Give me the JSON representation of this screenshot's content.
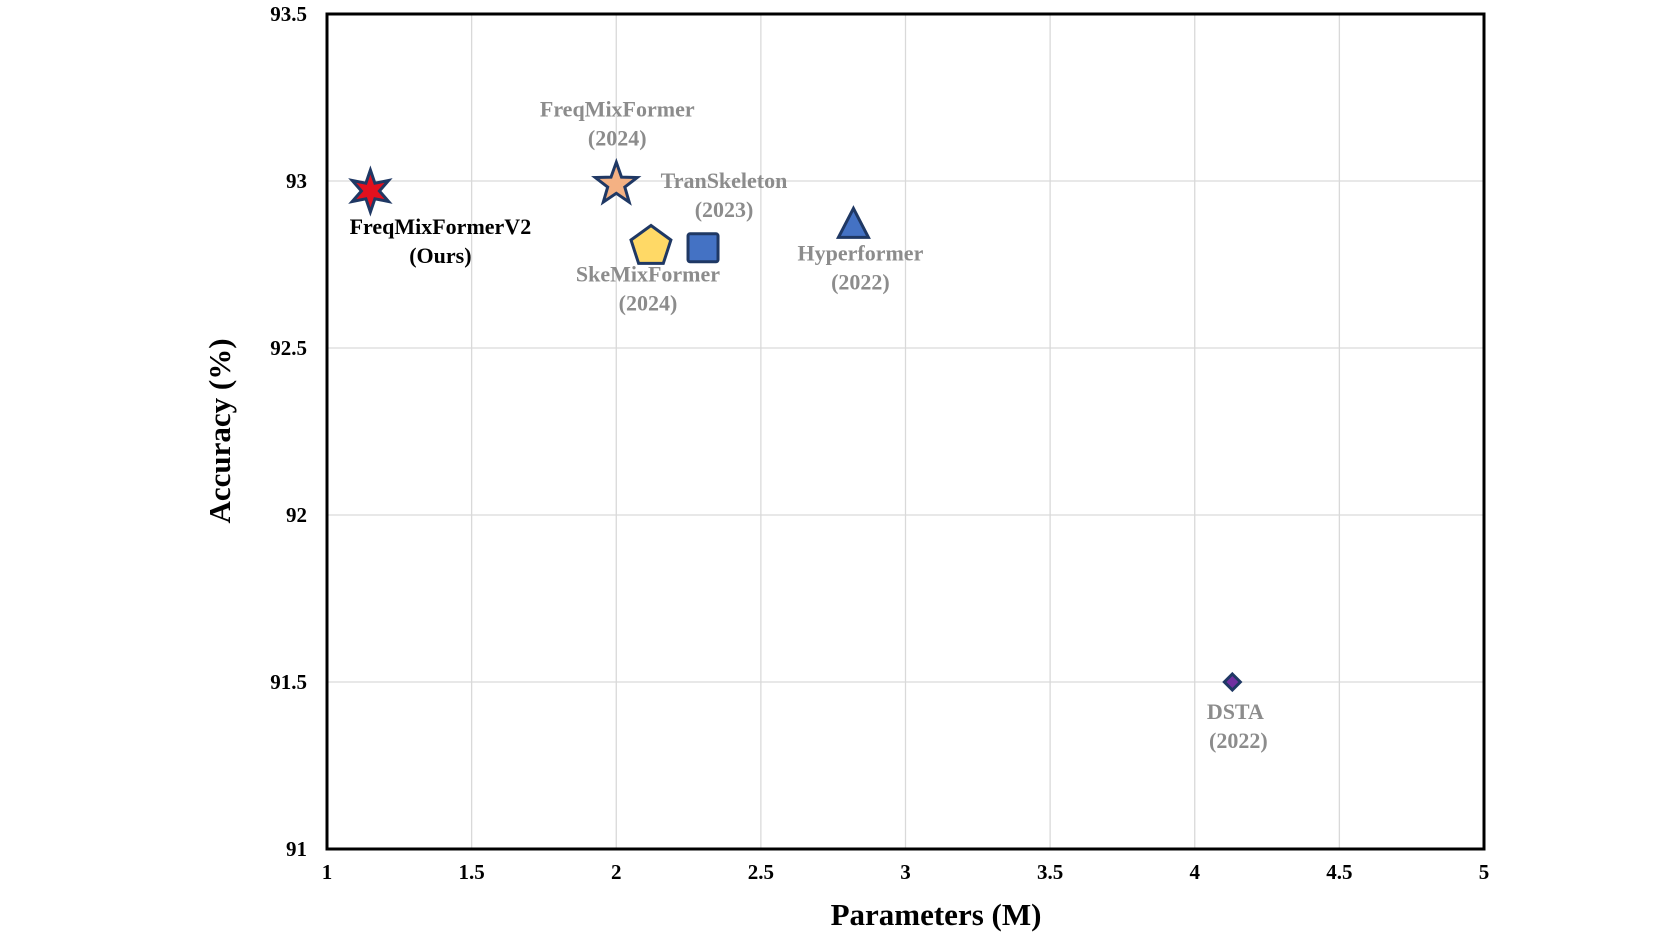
{
  "chart_data": {
    "type": "scatter",
    "title": "",
    "xlabel": "Parameters (M)",
    "ylabel": "Accuracy (%)",
    "xlim": [
      1,
      5
    ],
    "ylim": [
      91,
      93.5
    ],
    "xticks": [
      1,
      1.5,
      2,
      2.5,
      3,
      3.5,
      4,
      4.5,
      5
    ],
    "xtick_labels": [
      "1",
      "1.5",
      "2",
      "2.5",
      "3",
      "3.5",
      "4",
      "4.5",
      "5"
    ],
    "yticks": [
      91,
      91.5,
      92,
      92.5,
      93,
      93.5
    ],
    "ytick_labels": [
      "91",
      "91.5",
      "92",
      "92.5",
      "93",
      "93.5"
    ],
    "grid": true,
    "legend": "none",
    "points": [
      {
        "name": "FreqMixFormerV2",
        "year": "(Ours)",
        "x": 1.15,
        "y": 92.97,
        "marker": "star6",
        "fill": "#e3101e",
        "label_color": "#000000",
        "label_position": "below"
      },
      {
        "name": "FreqMixFormer",
        "year": "(2024)",
        "x": 2.0,
        "y": 92.99,
        "marker": "star5",
        "fill": "#f4b183",
        "label_color": "#8c8c8c",
        "label_position": "above"
      },
      {
        "name": "TranSkeleton",
        "year": "(2023)",
        "x": 2.3,
        "y": 92.8,
        "marker": "square",
        "fill": "#4472c4",
        "label_color": "#8c8c8c",
        "label_position": "above-right"
      },
      {
        "name": "SkeMixFormer",
        "year": "(2024)",
        "x": 2.12,
        "y": 92.81,
        "marker": "pentagon",
        "fill": "#ffd966",
        "label_color": "#8c8c8c",
        "label_position": "below"
      },
      {
        "name": "Hyperformer",
        "year": "(2022)",
        "x": 2.82,
        "y": 92.87,
        "marker": "triangle",
        "fill": "#4472c4",
        "label_color": "#8c8c8c",
        "label_position": "below"
      },
      {
        "name": "DSTA",
        "year": "(2022)",
        "x": 4.13,
        "y": 91.5,
        "marker": "diamond",
        "fill": "#7030a0",
        "label_color": "#8c8c8c",
        "label_position": "below"
      }
    ],
    "marker_stroke": "#1f3864"
  }
}
